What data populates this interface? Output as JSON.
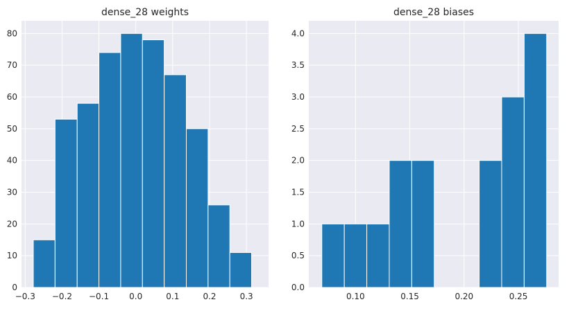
{
  "chart_data": [
    {
      "type": "bar",
      "title": "dense_28 weights",
      "xlabel": "",
      "ylabel": "",
      "bar_color": "#1f77b4",
      "background": "#eaeaf2",
      "grid": true,
      "xlim": [
        -0.31,
        0.36
      ],
      "ylim": [
        0,
        84
      ],
      "xticks": [
        -0.3,
        -0.2,
        -0.1,
        0.0,
        0.1,
        0.2,
        0.3
      ],
      "xtick_labels": [
        "−0.3",
        "−0.2",
        "−0.1",
        "0.0",
        "0.1",
        "0.2",
        "0.3"
      ],
      "yticks": [
        0,
        10,
        20,
        30,
        40,
        50,
        60,
        70,
        80
      ],
      "ytick_labels": [
        "0",
        "10",
        "20",
        "30",
        "40",
        "50",
        "60",
        "70",
        "80"
      ],
      "bin_edges": [
        -0.278,
        -0.219,
        -0.159,
        -0.1,
        -0.041,
        0.018,
        0.077,
        0.137,
        0.196,
        0.255,
        0.314
      ],
      "values": [
        15,
        53,
        58,
        74,
        80,
        78,
        67,
        50,
        26,
        11
      ]
    },
    {
      "type": "bar",
      "title": "dense_28 biases",
      "xlabel": "",
      "ylabel": "",
      "bar_color": "#1f77b4",
      "background": "#eaeaf2",
      "grid": true,
      "xlim": [
        0.057,
        0.287
      ],
      "ylim": [
        0,
        4.2
      ],
      "xticks": [
        0.1,
        0.15,
        0.2,
        0.25
      ],
      "xtick_labels": [
        "0.10",
        "0.15",
        "0.20",
        "0.25"
      ],
      "yticks": [
        0,
        0.5,
        1.0,
        1.5,
        2.0,
        2.5,
        3.0,
        3.5,
        4.0
      ],
      "ytick_labels": [
        "0.0",
        "0.5",
        "1.0",
        "1.5",
        "2.0",
        "2.5",
        "3.0",
        "3.5",
        "4.0"
      ],
      "bin_edges": [
        0.069,
        0.0897,
        0.1104,
        0.1311,
        0.1518,
        0.1725,
        0.1932,
        0.2139,
        0.2346,
        0.2553,
        0.276
      ],
      "values": [
        1,
        1,
        1,
        2,
        2,
        0,
        0,
        2,
        3,
        4
      ]
    }
  ]
}
